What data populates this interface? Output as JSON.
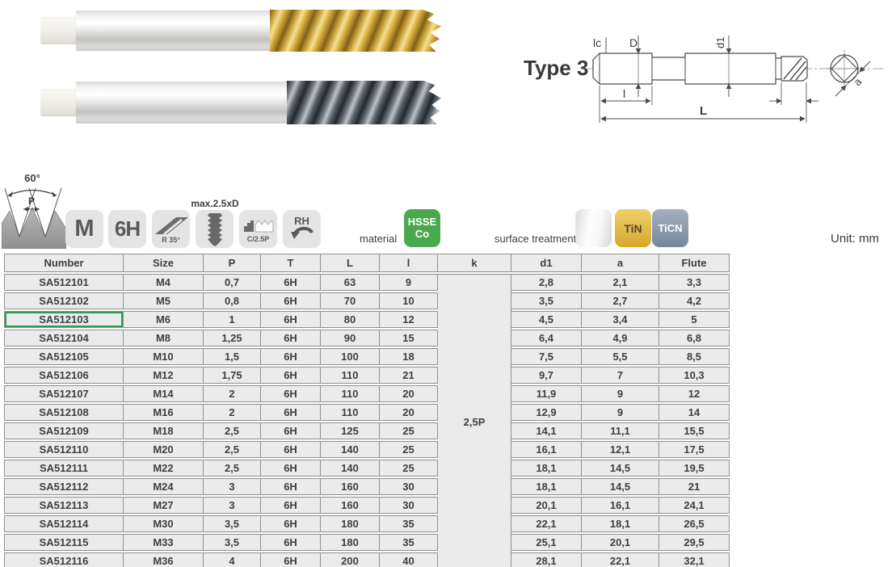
{
  "page": {
    "unit_label": "Unit: mm"
  },
  "photos": {
    "tap_tin": "spiral-flute-tap-TiN-coated",
    "tap_ticn": "spiral-flute-tap-TiCN-coated"
  },
  "diagram": {
    "title": "Type 3",
    "labels": {
      "lc": "lc",
      "D": "D",
      "d1": "d1",
      "l": "l",
      "L": "L",
      "a": "a"
    }
  },
  "spec_icons": {
    "thread_angle": "60°",
    "pitch_label": "P",
    "badges": [
      {
        "id": "thread-type",
        "label": "M"
      },
      {
        "id": "tolerance",
        "label": "6H"
      },
      {
        "id": "helix-angle",
        "label": "R 35°"
      },
      {
        "id": "max-thread-depth",
        "label": "max.2.5xD"
      },
      {
        "id": "chamfer",
        "label": "C/2.5P"
      },
      {
        "id": "rotation",
        "label": "RH"
      }
    ],
    "material_label": "material",
    "material_badge": {
      "line1": "HSSE",
      "line2": "Co"
    },
    "surface_label": "surface treatment",
    "surface_badges": {
      "blank": "",
      "tin": "TiN",
      "ticn": "TiCN"
    }
  },
  "colors": {
    "material_green": "#4aa84f",
    "tin_gold": "#d9a72c",
    "ticn_gray": "#75879c",
    "badge_gray": "#e4e4e4",
    "highlight_green": "#2a9d4e",
    "table_cell": "#ebebeb",
    "table_border": "#8f8f8f"
  },
  "table": {
    "headers": [
      "Number",
      "Size",
      "P",
      "T",
      "L",
      "l",
      "k",
      "d1",
      "a",
      "Flute"
    ],
    "k_value": "2,5P",
    "highlight_row_index": 2,
    "rows": [
      [
        "SA512101",
        "M4",
        "0,7",
        "6H",
        "63",
        "9",
        "2,8",
        "2,1",
        "3,3"
      ],
      [
        "SA512102",
        "M5",
        "0,8",
        "6H",
        "70",
        "10",
        "3,5",
        "2,7",
        "4,2"
      ],
      [
        "SA512103",
        "M6",
        "1",
        "6H",
        "80",
        "12",
        "4,5",
        "3,4",
        "5"
      ],
      [
        "SA512104",
        "M8",
        "1,25",
        "6H",
        "90",
        "15",
        "6,4",
        "4,9",
        "6,8"
      ],
      [
        "SA512105",
        "M10",
        "1,5",
        "6H",
        "100",
        "18",
        "7,5",
        "5,5",
        "8,5"
      ],
      [
        "SA512106",
        "M12",
        "1,75",
        "6H",
        "110",
        "21",
        "9,7",
        "7",
        "10,3"
      ],
      [
        "SA512107",
        "M14",
        "2",
        "6H",
        "110",
        "20",
        "11,9",
        "9",
        "12"
      ],
      [
        "SA512108",
        "M16",
        "2",
        "6H",
        "110",
        "20",
        "12,9",
        "9",
        "14"
      ],
      [
        "SA512109",
        "M18",
        "2,5",
        "6H",
        "125",
        "25",
        "14,1",
        "11,1",
        "15,5"
      ],
      [
        "SA512110",
        "M20",
        "2,5",
        "6H",
        "140",
        "25",
        "16,1",
        "12,1",
        "17,5"
      ],
      [
        "SA512111",
        "M22",
        "2,5",
        "6H",
        "140",
        "25",
        "18,1",
        "14,5",
        "19,5"
      ],
      [
        "SA512112",
        "M24",
        "3",
        "6H",
        "160",
        "30",
        "18,1",
        "14,5",
        "21"
      ],
      [
        "SA512113",
        "M27",
        "3",
        "6H",
        "160",
        "30",
        "20,1",
        "16,1",
        "24,1"
      ],
      [
        "SA512114",
        "M30",
        "3,5",
        "6H",
        "180",
        "35",
        "22,1",
        "18,1",
        "26,5"
      ],
      [
        "SA512115",
        "M33",
        "3,5",
        "6H",
        "180",
        "35",
        "25,1",
        "20,1",
        "29,5"
      ],
      [
        "SA512116",
        "M36",
        "4",
        "6H",
        "200",
        "40",
        "28,1",
        "22,1",
        "32,1"
      ]
    ]
  }
}
